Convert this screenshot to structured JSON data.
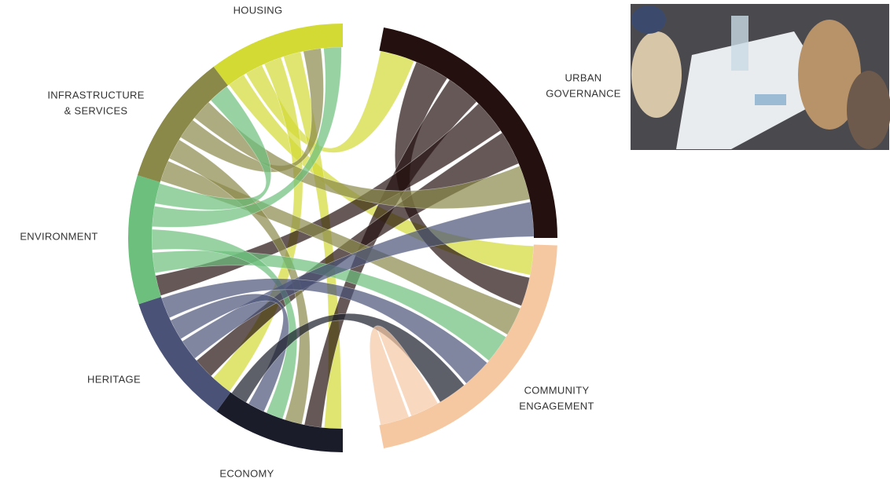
{
  "nodes": [
    {
      "label": [
        "HOUSING"
      ],
      "color": "#d3da34"
    },
    {
      "label": [
        "URBAN",
        "GOVERNANCE"
      ],
      "color": "#24110f"
    },
    {
      "label": [
        "COMMUNITY",
        "ENGAGEMENT"
      ],
      "color": "#f5c8a2"
    },
    {
      "label": [
        "ECONOMY"
      ],
      "color": "#1a1c2a"
    },
    {
      "label": [
        "HERITAGE"
      ],
      "color": "#4a5377"
    },
    {
      "label": [
        "ENVIRONMENT"
      ],
      "color": "#6cbf7c"
    },
    {
      "label": [
        "INFRASTRUCTURE",
        "& SERVICES"
      ],
      "color": "#8a894a"
    }
  ]
}
